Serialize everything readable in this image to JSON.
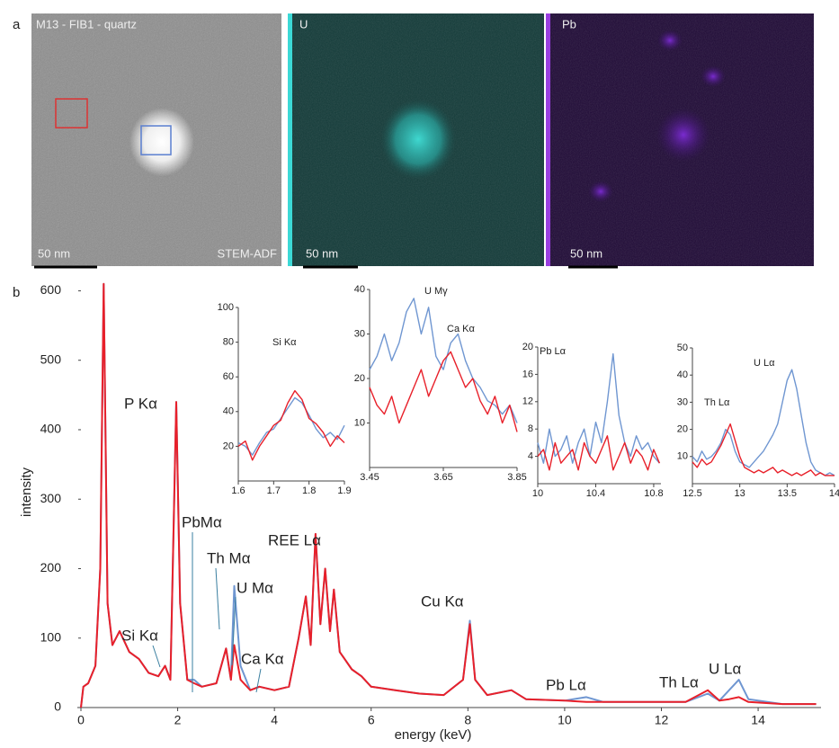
{
  "panel_a": {
    "label": "a",
    "images": [
      {
        "title": "M13 - FIB1 - quartz",
        "scale_bar": "50 nm",
        "mode": "STEM-ADF"
      },
      {
        "title": "U",
        "scale_bar": "50 nm"
      },
      {
        "title": "Pb",
        "scale_bar": "50 nm"
      }
    ]
  },
  "panel_b": {
    "label": "b"
  },
  "chart_data": [
    {
      "type": "line",
      "x_label": "energy (keV)",
      "y_label": "intensity",
      "xlim": [
        0,
        15.3
      ],
      "ylim": [
        0,
        620
      ],
      "xticks": [
        0,
        2,
        4,
        6,
        8,
        10,
        12,
        14
      ],
      "yticks": [
        0,
        100,
        200,
        300,
        400,
        500,
        600
      ],
      "annotations": [
        "P Kα",
        "Si Kα",
        "PbMα",
        "Th Mα",
        "U Mα",
        "Ca Kα",
        "REE Lα",
        "Cu Kα",
        "Pb Lα",
        "Th Lα",
        "U Lα"
      ],
      "x": [
        0,
        0.05,
        0.15,
        0.3,
        0.4,
        0.47,
        0.55,
        0.65,
        0.8,
        1.0,
        1.2,
        1.4,
        1.6,
        1.74,
        1.85,
        1.97,
        2.05,
        2.2,
        2.34,
        2.5,
        2.8,
        3.0,
        3.1,
        3.17,
        3.3,
        3.5,
        3.69,
        4.0,
        4.3,
        4.5,
        4.65,
        4.75,
        4.85,
        4.95,
        5.05,
        5.15,
        5.23,
        5.35,
        5.6,
        5.8,
        6.0,
        6.5,
        7.0,
        7.5,
        7.9,
        8.04,
        8.15,
        8.4,
        8.9,
        9.2,
        10.0,
        10.45,
        10.8,
        11.5,
        12.5,
        12.96,
        13.2,
        13.4,
        13.6,
        13.8,
        14.5,
        15.2
      ],
      "series": [
        {
          "name": "blue",
          "color": "#6f96d1",
          "values": [
            0,
            30,
            35,
            60,
            200,
            610,
            150,
            90,
            110,
            80,
            70,
            50,
            45,
            60,
            40,
            440,
            150,
            40,
            40,
            30,
            35,
            85,
            40,
            175,
            60,
            25,
            30,
            25,
            30,
            100,
            160,
            90,
            250,
            120,
            200,
            110,
            170,
            80,
            55,
            45,
            30,
            25,
            20,
            18,
            40,
            125,
            40,
            18,
            25,
            12,
            10,
            15,
            8,
            8,
            8,
            20,
            10,
            25,
            40,
            12,
            5,
            5
          ]
        },
        {
          "name": "red",
          "color": "#e8202a",
          "values": [
            0,
            30,
            35,
            60,
            200,
            610,
            150,
            90,
            110,
            80,
            70,
            50,
            45,
            60,
            40,
            440,
            150,
            40,
            35,
            30,
            35,
            85,
            40,
            90,
            40,
            25,
            30,
            25,
            30,
            100,
            160,
            90,
            250,
            120,
            200,
            110,
            170,
            80,
            55,
            45,
            30,
            25,
            20,
            18,
            40,
            120,
            40,
            18,
            25,
            12,
            10,
            8,
            8,
            8,
            8,
            25,
            10,
            12,
            15,
            8,
            5,
            5
          ]
        }
      ]
    },
    {
      "type": "line",
      "xlim": [
        1.6,
        1.9
      ],
      "ylim": [
        0,
        100
      ],
      "xticks": [
        1.6,
        1.7,
        1.8,
        1.9
      ],
      "yticks": [
        20,
        40,
        60,
        80,
        100
      ],
      "annotations": [
        "Si Kα"
      ],
      "x": [
        1.6,
        1.62,
        1.64,
        1.66,
        1.68,
        1.7,
        1.72,
        1.74,
        1.76,
        1.78,
        1.8,
        1.82,
        1.84,
        1.86,
        1.88,
        1.9
      ],
      "series": [
        {
          "name": "blue",
          "color": "#6f96d1",
          "values": [
            22,
            20,
            15,
            22,
            28,
            30,
            36,
            42,
            48,
            45,
            38,
            30,
            25,
            28,
            24,
            32
          ]
        },
        {
          "name": "red",
          "color": "#e8202a",
          "values": [
            20,
            23,
            12,
            20,
            26,
            32,
            35,
            45,
            52,
            47,
            36,
            33,
            28,
            20,
            26,
            22
          ]
        }
      ]
    },
    {
      "type": "line",
      "xlim": [
        3.45,
        3.85
      ],
      "ylim": [
        0,
        40
      ],
      "xticks": [
        3.45,
        3.65,
        3.85
      ],
      "yticks": [
        10,
        20,
        30,
        40
      ],
      "annotations": [
        "U Mγ",
        "Ca Kα"
      ],
      "x": [
        3.45,
        3.47,
        3.49,
        3.51,
        3.53,
        3.55,
        3.57,
        3.59,
        3.61,
        3.63,
        3.65,
        3.67,
        3.69,
        3.71,
        3.73,
        3.75,
        3.77,
        3.79,
        3.81,
        3.83,
        3.85
      ],
      "series": [
        {
          "name": "blue",
          "color": "#6f96d1",
          "values": [
            22,
            25,
            30,
            24,
            28,
            35,
            38,
            30,
            36,
            25,
            22,
            28,
            30,
            24,
            20,
            18,
            15,
            14,
            12,
            14,
            10
          ]
        },
        {
          "name": "red",
          "color": "#e8202a",
          "values": [
            18,
            14,
            12,
            16,
            10,
            14,
            18,
            22,
            16,
            20,
            24,
            26,
            22,
            18,
            20,
            15,
            12,
            16,
            10,
            14,
            8
          ]
        }
      ]
    },
    {
      "type": "line",
      "xlim": [
        10,
        10.85
      ],
      "ylim": [
        0,
        20
      ],
      "xticks": [
        10,
        10.4,
        10.8
      ],
      "yticks": [
        4,
        8,
        12,
        16,
        20
      ],
      "annotations": [
        "Pb Lα"
      ],
      "x": [
        10,
        10.04,
        10.08,
        10.12,
        10.16,
        10.2,
        10.24,
        10.28,
        10.32,
        10.36,
        10.4,
        10.44,
        10.48,
        10.52,
        10.56,
        10.6,
        10.64,
        10.68,
        10.72,
        10.76,
        10.8,
        10.84
      ],
      "series": [
        {
          "name": "blue",
          "color": "#6f96d1",
          "values": [
            6,
            3,
            8,
            4,
            5,
            7,
            3,
            6,
            8,
            4,
            9,
            6,
            12,
            19,
            10,
            6,
            4,
            7,
            5,
            6,
            4,
            3
          ]
        },
        {
          "name": "red",
          "color": "#e8202a",
          "values": [
            4,
            5,
            2,
            6,
            3,
            4,
            5,
            2,
            6,
            4,
            3,
            5,
            7,
            2,
            4,
            6,
            3,
            5,
            4,
            2,
            5,
            3
          ]
        }
      ]
    },
    {
      "type": "line",
      "xlim": [
        12.5,
        14
      ],
      "ylim": [
        0,
        50
      ],
      "xticks": [
        12.5,
        13,
        13.5,
        14
      ],
      "yticks": [
        10,
        20,
        30,
        40,
        50
      ],
      "annotations": [
        "Th Lα",
        "U Lα"
      ],
      "x": [
        12.5,
        12.55,
        12.6,
        12.65,
        12.7,
        12.75,
        12.8,
        12.85,
        12.9,
        12.95,
        13,
        13.05,
        13.1,
        13.15,
        13.2,
        13.25,
        13.3,
        13.35,
        13.4,
        13.45,
        13.5,
        13.55,
        13.6,
        13.65,
        13.7,
        13.75,
        13.8,
        13.85,
        13.9,
        13.95,
        14
      ],
      "series": [
        {
          "name": "blue",
          "color": "#6f96d1",
          "values": [
            10,
            8,
            12,
            9,
            10,
            12,
            15,
            20,
            18,
            12,
            8,
            7,
            6,
            8,
            10,
            12,
            15,
            18,
            22,
            30,
            38,
            42,
            35,
            25,
            15,
            8,
            5,
            4,
            3,
            4,
            3
          ]
        },
        {
          "name": "red",
          "color": "#e8202a",
          "values": [
            8,
            6,
            9,
            7,
            8,
            11,
            14,
            18,
            22,
            16,
            10,
            6,
            5,
            4,
            5,
            4,
            5,
            6,
            4,
            5,
            4,
            3,
            4,
            3,
            4,
            5,
            3,
            4,
            3,
            3,
            3
          ]
        }
      ]
    }
  ]
}
